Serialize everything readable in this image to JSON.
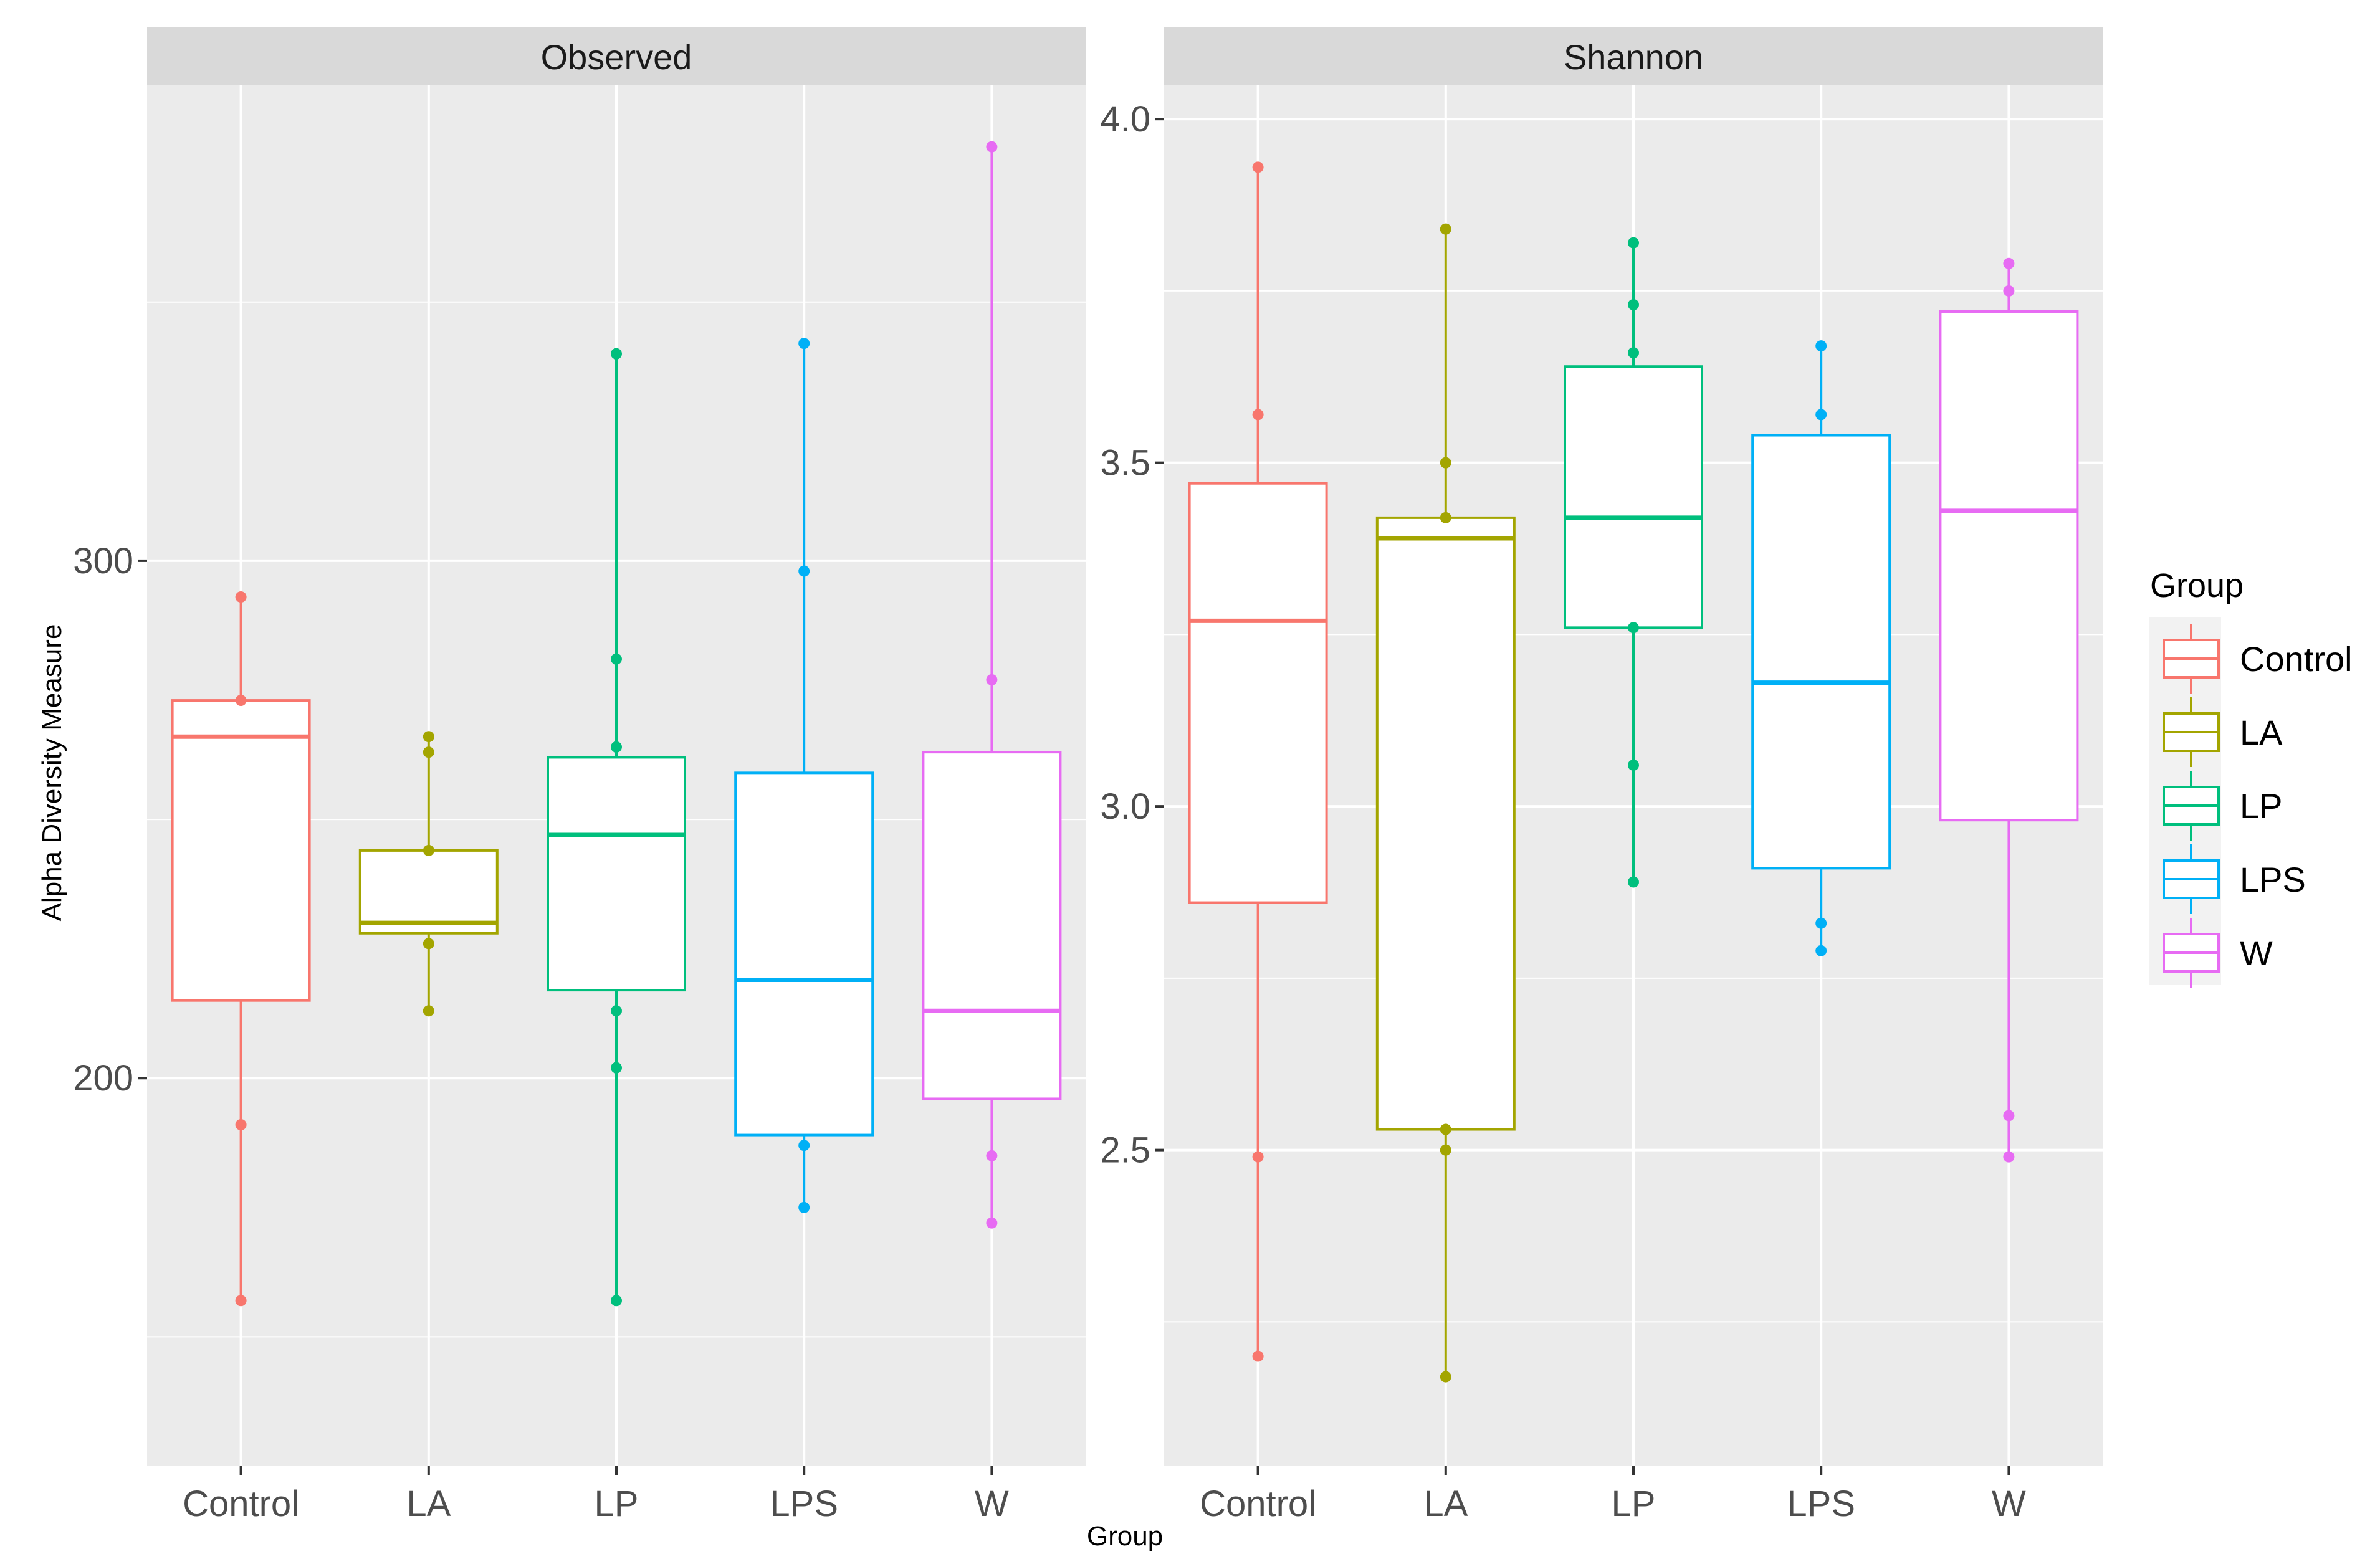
{
  "chart_data": {
    "type": "boxplot",
    "xlabel": "Group",
    "ylabel": "Alpha Diversity Measure",
    "categories": [
      "Control",
      "LA",
      "LP",
      "LPS",
      "W"
    ],
    "legend": {
      "title": "Group",
      "placement": "right",
      "entries": [
        "Control",
        "LA",
        "LP",
        "LPS",
        "W"
      ]
    },
    "colors": {
      "Control": "#F8766D",
      "LA": "#A3A500",
      "LP": "#00BF7D",
      "LPS": "#00B0F6",
      "W": "#E76BF3",
      "panel_background": "#EBEBEB",
      "strip_background": "#D9D9D9",
      "grid": "#FFFFFF"
    },
    "panels": [
      {
        "title": "Observed",
        "ylim": [
          125,
          392
        ],
        "yticks": [
          200,
          300
        ],
        "tick_labels": [
          "200",
          "300"
        ],
        "boxes": [
          {
            "group": "Control",
            "whisker_low": 157,
            "q1": 215,
            "median": 266,
            "q3": 273,
            "whisker_high": 293,
            "points": [
              157,
              191,
              273,
              293
            ]
          },
          {
            "group": "LA",
            "whisker_low": 213,
            "q1": 228,
            "median": 230,
            "q3": 244,
            "whisker_high": 266,
            "points": [
              213,
              226,
              244,
              263,
              266
            ]
          },
          {
            "group": "LP",
            "whisker_low": 157,
            "q1": 217,
            "median": 247,
            "q3": 262,
            "whisker_high": 340,
            "points": [
              157,
              202,
              213,
              264,
              281,
              340
            ]
          },
          {
            "group": "LPS",
            "whisker_low": 175,
            "q1": 189,
            "median": 219,
            "q3": 259,
            "whisker_high": 342,
            "points": [
              175,
              187,
              298,
              342
            ]
          },
          {
            "group": "W",
            "whisker_low": 172,
            "q1": 196,
            "median": 213,
            "q3": 263,
            "whisker_high": 380,
            "points": [
              172,
              185,
              277,
              380
            ]
          }
        ]
      },
      {
        "title": "Shannon",
        "ylim": [
          2.04,
          4.05
        ],
        "yticks": [
          2.5,
          3.0,
          3.5,
          4.0
        ],
        "tick_labels": [
          "2.5",
          "3.0",
          "3.5",
          "4.0"
        ],
        "boxes": [
          {
            "group": "Control",
            "whisker_low": 2.2,
            "q1": 2.86,
            "median": 3.27,
            "q3": 3.47,
            "whisker_high": 3.93,
            "points": [
              2.2,
              2.49,
              3.57,
              3.93
            ]
          },
          {
            "group": "LA",
            "whisker_low": 2.17,
            "q1": 2.53,
            "median": 3.39,
            "q3": 3.42,
            "whisker_high": 3.84,
            "points": [
              2.17,
              2.5,
              2.53,
              3.42,
              3.5,
              3.84
            ]
          },
          {
            "group": "LP",
            "whisker_low": 2.89,
            "q1": 3.26,
            "median": 3.42,
            "q3": 3.64,
            "whisker_high": 3.82,
            "points": [
              2.89,
              3.06,
              3.26,
              3.66,
              3.73,
              3.82
            ]
          },
          {
            "group": "LPS",
            "whisker_low": 2.79,
            "q1": 2.91,
            "median": 3.18,
            "q3": 3.54,
            "whisker_high": 3.67,
            "points": [
              2.79,
              2.83,
              3.57,
              3.67
            ]
          },
          {
            "group": "W",
            "whisker_low": 2.49,
            "q1": 2.98,
            "median": 3.43,
            "q3": 3.72,
            "whisker_high": 3.79,
            "points": [
              2.49,
              2.55,
              3.75,
              3.79
            ]
          }
        ]
      }
    ]
  }
}
